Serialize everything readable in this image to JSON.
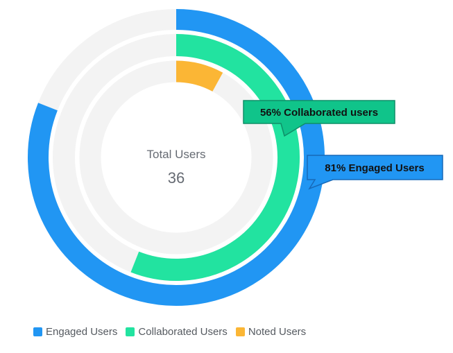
{
  "chart_data": {
    "type": "pie",
    "variant": "concentric-radial-donut",
    "center": {
      "label": "Total Users",
      "value": "36"
    },
    "series": [
      {
        "name": "Engaged Users",
        "percent": 81,
        "color": "#2196f3"
      },
      {
        "name": "Collaborated Users",
        "percent": 56,
        "color": "#22e3a0"
      },
      {
        "name": "Noted Users",
        "percent": 8,
        "color": "#fbb635"
      }
    ],
    "track_color": "#f3f3f3",
    "callouts": [
      {
        "text": "56% Collaborated users",
        "series": "Collaborated Users",
        "fill": "#10c48a",
        "border": "#0f8f68"
      },
      {
        "text": "81% Engaged Users",
        "series": "Engaged Users",
        "fill": "#2196f3",
        "border": "#1769b8"
      }
    ],
    "legend": {
      "position": "bottom-left",
      "items": [
        "Engaged Users",
        "Collaborated Users",
        "Noted Users"
      ]
    }
  }
}
